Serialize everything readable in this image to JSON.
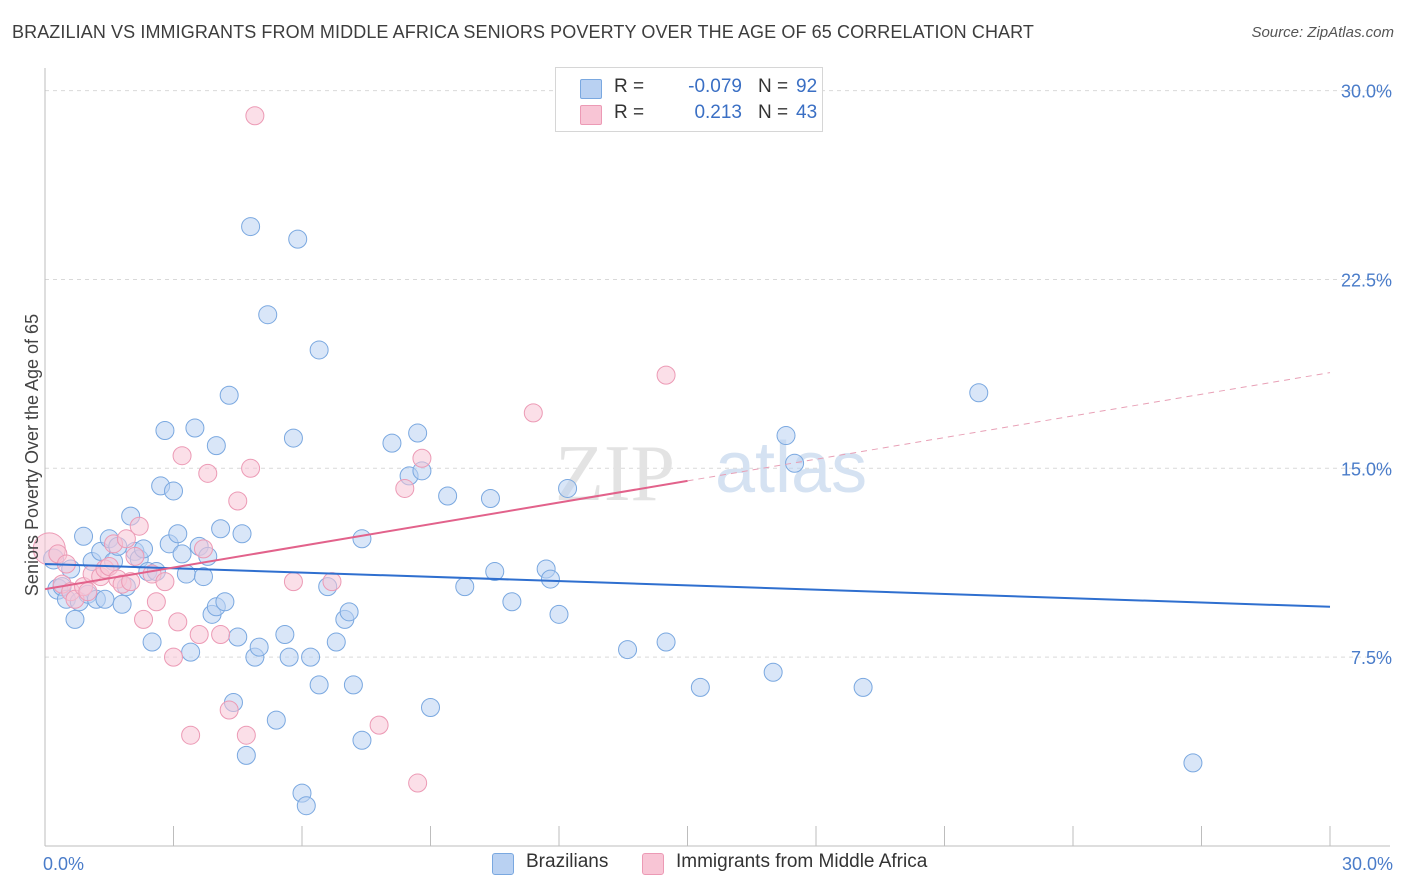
{
  "title": "BRAZILIAN VS IMMIGRANTS FROM MIDDLE AFRICA SENIORS POVERTY OVER THE AGE OF 65 CORRELATION CHART",
  "source": "Source: ZipAtlas.com",
  "watermark": {
    "left": "ZIP",
    "right": "atlas"
  },
  "stats": {
    "rows": [
      {
        "swatch_color": "#b9d1f2",
        "r_label": "R =",
        "r_value": "-0.079",
        "n_label": "N =",
        "n_value": "92"
      },
      {
        "swatch_color": "#f8c5d5",
        "r_label": "R =",
        "r_value": "0.213",
        "n_label": "N =",
        "n_value": "43"
      }
    ]
  },
  "legend": [
    {
      "label": "Brazilians",
      "color": "#b9d1f2"
    },
    {
      "label": "Immigrants from Middle Africa",
      "color": "#f8c5d5"
    }
  ],
  "chart_data": {
    "type": "scatter",
    "title": "BRAZILIAN VS IMMIGRANTS FROM MIDDLE AFRICA SENIORS POVERTY OVER THE AGE OF 65 CORRELATION CHART",
    "xlabel": "",
    "ylabel": "Seniors Poverty Over the Age of 65",
    "xlim": [
      0,
      30
    ],
    "ylim": [
      0,
      30.5
    ],
    "x_tick_labels": [
      {
        "value": 0,
        "label": "0.0%"
      },
      {
        "value": 30,
        "label": "30.0%"
      }
    ],
    "y_tick_labels": [
      {
        "value": 7.5,
        "label": "7.5%"
      },
      {
        "value": 15,
        "label": "15.0%"
      },
      {
        "value": 22.5,
        "label": "22.5%"
      },
      {
        "value": 30,
        "label": "30.0%"
      }
    ],
    "grid": true,
    "legend_position": "bottom",
    "series": [
      {
        "name": "Brazilians",
        "color": "#7aa8e0",
        "fill": "#b9d1f2",
        "trend": {
          "x": [
            0,
            30
          ],
          "y": [
            11.2,
            9.5
          ]
        },
        "points": [
          [
            0.2,
            11.4
          ],
          [
            0.3,
            10.2
          ],
          [
            0.4,
            10.3
          ],
          [
            0.5,
            9.8
          ],
          [
            0.6,
            11.0
          ],
          [
            0.7,
            9.0
          ],
          [
            0.8,
            9.7
          ],
          [
            0.9,
            12.3
          ],
          [
            1.0,
            10.0
          ],
          [
            1.1,
            11.3
          ],
          [
            1.2,
            9.8
          ],
          [
            1.3,
            11.7
          ],
          [
            1.4,
            9.8
          ],
          [
            1.5,
            12.2
          ],
          [
            1.6,
            11.3
          ],
          [
            1.7,
            11.9
          ],
          [
            1.8,
            9.6
          ],
          [
            1.9,
            10.3
          ],
          [
            2.0,
            13.1
          ],
          [
            2.1,
            11.7
          ],
          [
            2.2,
            11.4
          ],
          [
            2.3,
            11.8
          ],
          [
            2.4,
            10.9
          ],
          [
            2.5,
            8.1
          ],
          [
            2.6,
            10.9
          ],
          [
            2.7,
            14.3
          ],
          [
            2.8,
            16.5
          ],
          [
            2.9,
            12.0
          ],
          [
            3.0,
            14.1
          ],
          [
            3.1,
            12.4
          ],
          [
            3.2,
            11.6
          ],
          [
            3.3,
            10.8
          ],
          [
            3.4,
            7.7
          ],
          [
            3.5,
            16.6
          ],
          [
            3.6,
            11.9
          ],
          [
            3.7,
            10.7
          ],
          [
            3.8,
            11.5
          ],
          [
            3.9,
            9.2
          ],
          [
            4.0,
            9.5
          ],
          [
            4.0,
            15.9
          ],
          [
            4.1,
            12.6
          ],
          [
            4.2,
            9.7
          ],
          [
            4.3,
            17.9
          ],
          [
            4.4,
            5.7
          ],
          [
            4.5,
            8.3
          ],
          [
            4.6,
            12.4
          ],
          [
            4.7,
            3.6
          ],
          [
            4.8,
            24.6
          ],
          [
            4.9,
            7.5
          ],
          [
            5.0,
            7.9
          ],
          [
            5.2,
            21.1
          ],
          [
            5.4,
            5.0
          ],
          [
            5.6,
            8.4
          ],
          [
            5.7,
            7.5
          ],
          [
            5.8,
            16.2
          ],
          [
            5.9,
            24.1
          ],
          [
            6.0,
            2.1
          ],
          [
            6.1,
            1.6
          ],
          [
            6.2,
            7.5
          ],
          [
            6.4,
            19.7
          ],
          [
            6.4,
            6.4
          ],
          [
            6.6,
            10.3
          ],
          [
            6.8,
            8.1
          ],
          [
            7.0,
            9.0
          ],
          [
            7.1,
            9.3
          ],
          [
            7.2,
            6.4
          ],
          [
            7.4,
            12.2
          ],
          [
            7.4,
            4.2
          ],
          [
            8.1,
            16.0
          ],
          [
            8.5,
            14.7
          ],
          [
            8.7,
            16.4
          ],
          [
            8.8,
            14.9
          ],
          [
            9.0,
            5.5
          ],
          [
            9.4,
            13.9
          ],
          [
            9.8,
            10.3
          ],
          [
            10.4,
            13.8
          ],
          [
            10.5,
            10.9
          ],
          [
            10.9,
            9.7
          ],
          [
            11.7,
            11.0
          ],
          [
            11.8,
            10.6
          ],
          [
            12.0,
            9.2
          ],
          [
            12.2,
            14.2
          ],
          [
            13.6,
            7.8
          ],
          [
            14.5,
            8.1
          ],
          [
            15.3,
            6.3
          ],
          [
            17.0,
            6.9
          ],
          [
            17.3,
            16.3
          ],
          [
            17.5,
            15.2
          ],
          [
            19.1,
            6.3
          ],
          [
            21.8,
            18.0
          ],
          [
            26.8,
            3.3
          ]
        ]
      },
      {
        "name": "Immigrants from Middle Africa",
        "color": "#ec9ab5",
        "fill": "#f8c5d5",
        "trend": {
          "x": [
            0,
            15
          ],
          "y": [
            10.2,
            14.5
          ]
        },
        "trend_dashed": {
          "x": [
            15,
            30
          ],
          "y": [
            14.5,
            18.8
          ]
        },
        "points": [
          [
            0.1,
            11.8
          ],
          [
            0.3,
            11.6
          ],
          [
            0.4,
            10.4
          ],
          [
            0.5,
            11.2
          ],
          [
            0.6,
            10.1
          ],
          [
            0.7,
            9.8
          ],
          [
            0.9,
            10.3
          ],
          [
            1.0,
            10.1
          ],
          [
            1.1,
            10.8
          ],
          [
            1.3,
            10.7
          ],
          [
            1.4,
            11.0
          ],
          [
            1.5,
            11.1
          ],
          [
            1.6,
            12.0
          ],
          [
            1.7,
            10.6
          ],
          [
            1.8,
            10.4
          ],
          [
            1.9,
            12.2
          ],
          [
            2.0,
            10.5
          ],
          [
            2.1,
            11.5
          ],
          [
            2.2,
            12.7
          ],
          [
            2.3,
            9.0
          ],
          [
            2.5,
            10.8
          ],
          [
            2.6,
            9.7
          ],
          [
            2.8,
            10.5
          ],
          [
            3.0,
            7.5
          ],
          [
            3.1,
            8.9
          ],
          [
            3.2,
            15.5
          ],
          [
            3.4,
            4.4
          ],
          [
            3.6,
            8.4
          ],
          [
            3.7,
            11.8
          ],
          [
            3.8,
            14.8
          ],
          [
            4.1,
            8.4
          ],
          [
            4.3,
            5.4
          ],
          [
            4.5,
            13.7
          ],
          [
            4.7,
            4.4
          ],
          [
            4.8,
            15.0
          ],
          [
            4.9,
            29.0
          ],
          [
            5.8,
            10.5
          ],
          [
            6.7,
            10.5
          ],
          [
            7.8,
            4.8
          ],
          [
            8.4,
            14.2
          ],
          [
            8.7,
            2.5
          ],
          [
            8.8,
            15.4
          ],
          [
            11.4,
            17.2
          ],
          [
            14.5,
            18.7
          ]
        ]
      }
    ]
  }
}
